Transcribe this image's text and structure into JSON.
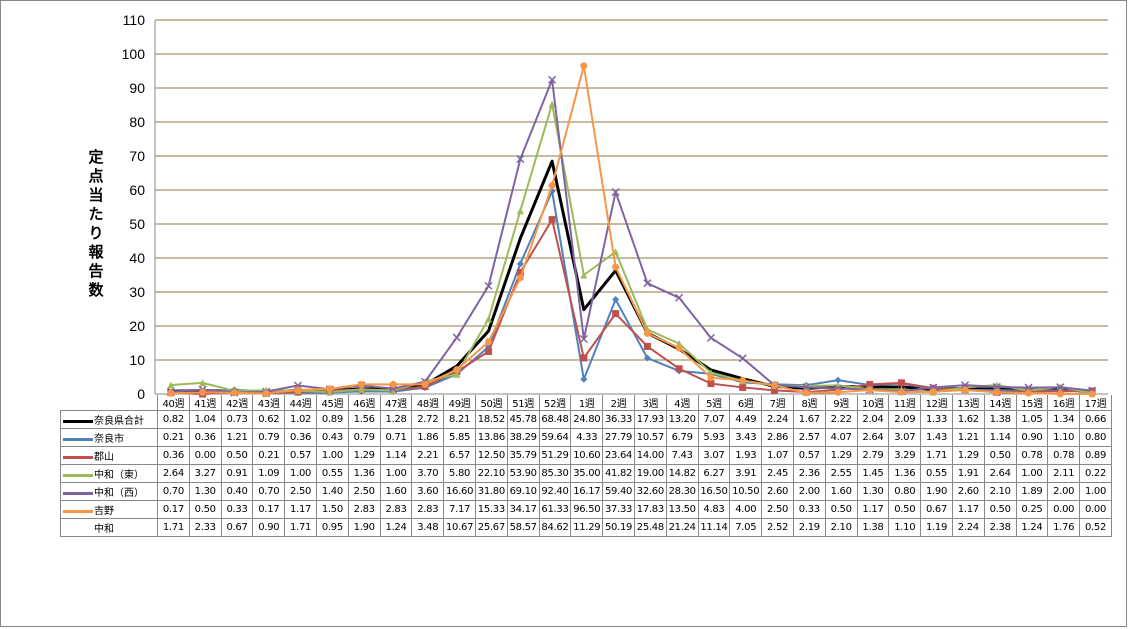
{
  "chart_data": {
    "type": "line",
    "ylabel": "定点当たり報告数",
    "ylim": [
      0,
      110
    ],
    "yticks": [
      0,
      10,
      20,
      30,
      40,
      50,
      60,
      70,
      80,
      90,
      100,
      110
    ],
    "grid": true,
    "categories": [
      "40週",
      "41週",
      "42週",
      "43週",
      "44週",
      "45週",
      "46週",
      "47週",
      "48週",
      "49週",
      "50週",
      "51週",
      "52週",
      "1週",
      "2週",
      "3週",
      "4週",
      "5週",
      "6週",
      "7週",
      "8週",
      "9週",
      "10週",
      "11週",
      "12週",
      "13週",
      "14週",
      "15週",
      "16週",
      "17週"
    ],
    "series": [
      {
        "name": "奈良県合計",
        "color": "#000000",
        "marker": "none",
        "width": 3,
        "drawn": true,
        "values": [
          0.82,
          1.04,
          0.73,
          0.62,
          1.02,
          0.89,
          1.56,
          1.28,
          2.72,
          8.21,
          18.52,
          45.78,
          68.48,
          24.8,
          36.33,
          17.93,
          13.2,
          7.07,
          4.49,
          2.24,
          1.67,
          2.22,
          2.04,
          2.09,
          1.33,
          1.62,
          1.38,
          1.05,
          1.34,
          0.66
        ]
      },
      {
        "name": "奈良市",
        "color": "#4F81BD",
        "marker": "diamond",
        "width": 2,
        "drawn": true,
        "values": [
          0.21,
          0.36,
          1.21,
          0.79,
          0.36,
          0.43,
          0.79,
          0.71,
          1.86,
          5.85,
          13.86,
          38.29,
          59.64,
          4.33,
          27.79,
          10.57,
          6.79,
          5.93,
          3.43,
          2.86,
          2.57,
          4.07,
          2.64,
          3.07,
          1.43,
          1.21,
          1.14,
          0.9,
          1.1,
          0.8
        ]
      },
      {
        "name": "郡山",
        "color": "#C0504D",
        "marker": "square",
        "width": 2,
        "drawn": true,
        "values": [
          0.36,
          0.0,
          0.5,
          0.21,
          0.57,
          1.0,
          1.29,
          1.14,
          2.21,
          6.57,
          12.5,
          35.79,
          51.29,
          10.6,
          23.64,
          14.0,
          7.43,
          3.07,
          1.93,
          1.07,
          0.57,
          1.29,
          2.79,
          3.29,
          1.71,
          1.29,
          0.5,
          0.78,
          0.78,
          0.89
        ]
      },
      {
        "name": "中和（東）",
        "color": "#9BBB59",
        "marker": "triangle",
        "width": 2,
        "drawn": true,
        "values": [
          2.64,
          3.27,
          0.91,
          1.09,
          1.0,
          0.55,
          1.36,
          1.0,
          3.7,
          5.8,
          22.1,
          53.9,
          85.3,
          35.0,
          41.82,
          19.0,
          14.82,
          6.27,
          3.91,
          2.45,
          2.36,
          2.55,
          1.45,
          1.36,
          0.55,
          1.91,
          2.64,
          1.0,
          2.11,
          0.22
        ]
      },
      {
        "name": "中和（西）",
        "color": "#8064A2",
        "marker": "x",
        "width": 2,
        "drawn": true,
        "values": [
          0.7,
          1.3,
          0.4,
          0.7,
          2.5,
          1.4,
          2.5,
          1.6,
          3.6,
          16.6,
          31.8,
          69.1,
          92.4,
          16.17,
          59.4,
          32.6,
          28.3,
          16.5,
          10.5,
          2.6,
          2.0,
          1.6,
          1.3,
          0.8,
          1.9,
          2.6,
          2.1,
          1.89,
          2.0,
          1.0
        ]
      },
      {
        "name": "吉野",
        "color": "#F79646",
        "marker": "circle",
        "width": 2,
        "drawn": true,
        "values": [
          0.17,
          0.5,
          0.33,
          0.17,
          1.17,
          1.5,
          2.83,
          2.83,
          2.83,
          7.17,
          15.33,
          34.17,
          61.33,
          96.5,
          37.33,
          17.83,
          13.5,
          4.83,
          4.0,
          2.5,
          0.33,
          0.5,
          1.17,
          0.5,
          0.67,
          1.17,
          0.5,
          0.25,
          0.0,
          0.0
        ]
      },
      {
        "name": "中和",
        "color": "",
        "marker": "none",
        "width": 0,
        "drawn": false,
        "values": [
          1.71,
          2.33,
          0.67,
          0.9,
          1.71,
          0.95,
          1.9,
          1.24,
          3.48,
          10.67,
          25.67,
          58.57,
          84.62,
          11.29,
          50.19,
          25.48,
          21.24,
          11.14,
          7.05,
          2.52,
          2.19,
          2.1,
          1.38,
          1.1,
          1.19,
          2.24,
          2.38,
          1.24,
          1.76,
          0.52
        ]
      }
    ],
    "gridline_color": "#8C7A48"
  }
}
